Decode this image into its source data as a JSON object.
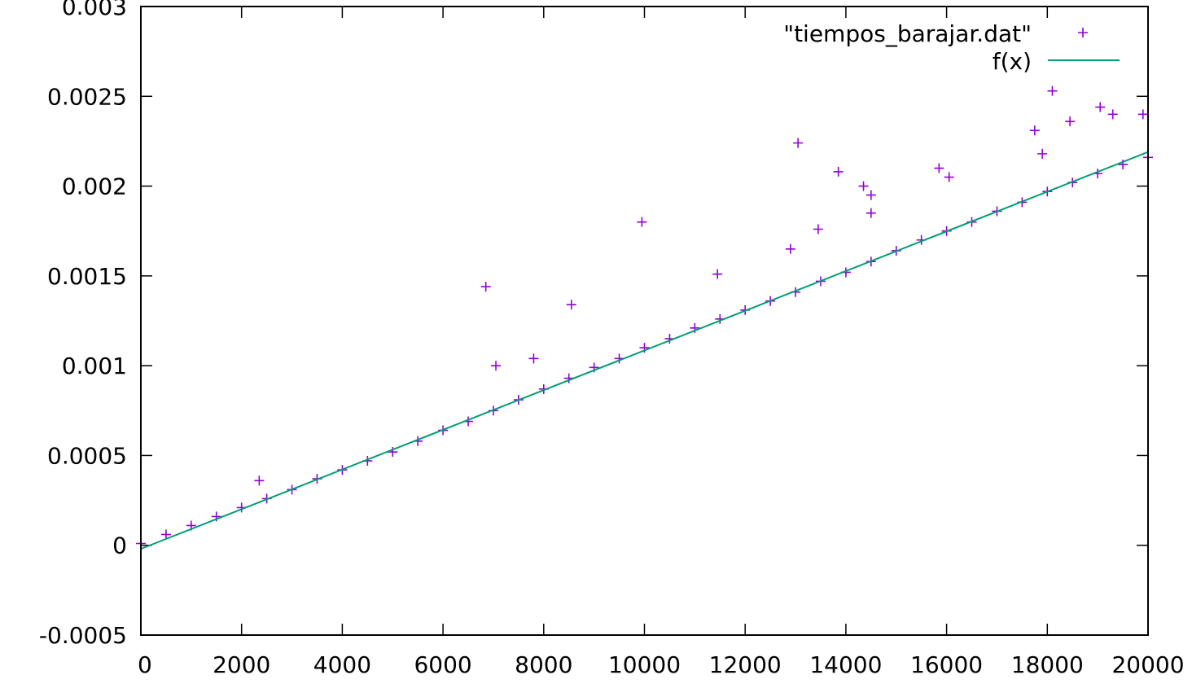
{
  "chart_data": {
    "type": "scatter",
    "title": "",
    "xlabel": "",
    "ylabel": "",
    "xlim": [
      0,
      20000
    ],
    "ylim": [
      -0.0005,
      0.003
    ],
    "x_ticks": [
      0,
      2000,
      4000,
      6000,
      8000,
      10000,
      12000,
      14000,
      16000,
      18000,
      20000
    ],
    "x_tick_labels": [
      "0",
      "2000",
      "4000",
      "6000",
      "8000",
      "10000",
      "12000",
      "14000",
      "16000",
      "18000",
      "20000"
    ],
    "y_ticks": [
      -0.0005,
      0,
      0.0005,
      0.001,
      0.0015,
      0.002,
      0.0025,
      0.003
    ],
    "y_tick_labels": [
      "-0.0005",
      "0",
      "0.0005",
      "0.001",
      "0.0015",
      "0.002",
      "0.0025",
      "0.003"
    ],
    "grid": false,
    "legend_position": "top-right",
    "series": [
      {
        "name": "\"tiempos_barajar.dat\"",
        "kind": "scatter",
        "marker": "plus",
        "color": "#9400d3",
        "x": [
          0,
          500,
          1000,
          1500,
          2000,
          2500,
          3000,
          3500,
          4000,
          4500,
          5000,
          5500,
          6000,
          6500,
          7000,
          7500,
          8000,
          8500,
          9000,
          9500,
          10000,
          10500,
          11000,
          11500,
          12000,
          12500,
          13000,
          13500,
          14000,
          14500,
          15000,
          15500,
          16000,
          16500,
          17000,
          17500,
          18000,
          18500,
          19000,
          19500,
          20000
        ],
        "y": [
          1e-05,
          6e-05,
          0.00011,
          0.00016,
          0.00021,
          0.00026,
          0.00031,
          0.00037,
          0.00042,
          0.00047,
          0.00052,
          0.00058,
          0.00064,
          0.00069,
          0.00075,
          0.00081,
          0.00087,
          0.00093,
          0.00099,
          0.00104,
          0.0011,
          0.00115,
          0.00121,
          0.00126,
          0.00131,
          0.00136,
          0.00141,
          0.00147,
          0.00152,
          0.00158,
          0.00164,
          0.0017,
          0.00175,
          0.0018,
          0.00186,
          0.00191,
          0.00197,
          0.00202,
          0.00207,
          0.00212,
          0.00216
        ],
        "outliers": [
          {
            "x": 2350,
            "y": 0.00036
          },
          {
            "x": 6850,
            "y": 0.00144
          },
          {
            "x": 7050,
            "y": 0.001
          },
          {
            "x": 7800,
            "y": 0.00104
          },
          {
            "x": 8550,
            "y": 0.00134
          },
          {
            "x": 9950,
            "y": 0.0018
          },
          {
            "x": 11450,
            "y": 0.00151
          },
          {
            "x": 12900,
            "y": 0.00165
          },
          {
            "x": 13050,
            "y": 0.00224
          },
          {
            "x": 13450,
            "y": 0.00176
          },
          {
            "x": 13850,
            "y": 0.00208
          },
          {
            "x": 14350,
            "y": 0.002
          },
          {
            "x": 14500,
            "y": 0.00185
          },
          {
            "x": 14500,
            "y": 0.00195
          },
          {
            "x": 15850,
            "y": 0.0021
          },
          {
            "x": 16050,
            "y": 0.00205
          },
          {
            "x": 17900,
            "y": 0.00218
          },
          {
            "x": 18100,
            "y": 0.00253
          },
          {
            "x": 17750,
            "y": 0.00231
          },
          {
            "x": 18450,
            "y": 0.00236
          },
          {
            "x": 19050,
            "y": 0.00244
          },
          {
            "x": 19300,
            "y": 0.0024
          },
          {
            "x": 19900,
            "y": 0.0024
          }
        ]
      },
      {
        "name": "f(x)",
        "kind": "line",
        "color": "#009e73",
        "x": [
          0,
          20000
        ],
        "y": [
          -2e-05,
          0.00219
        ]
      }
    ]
  }
}
